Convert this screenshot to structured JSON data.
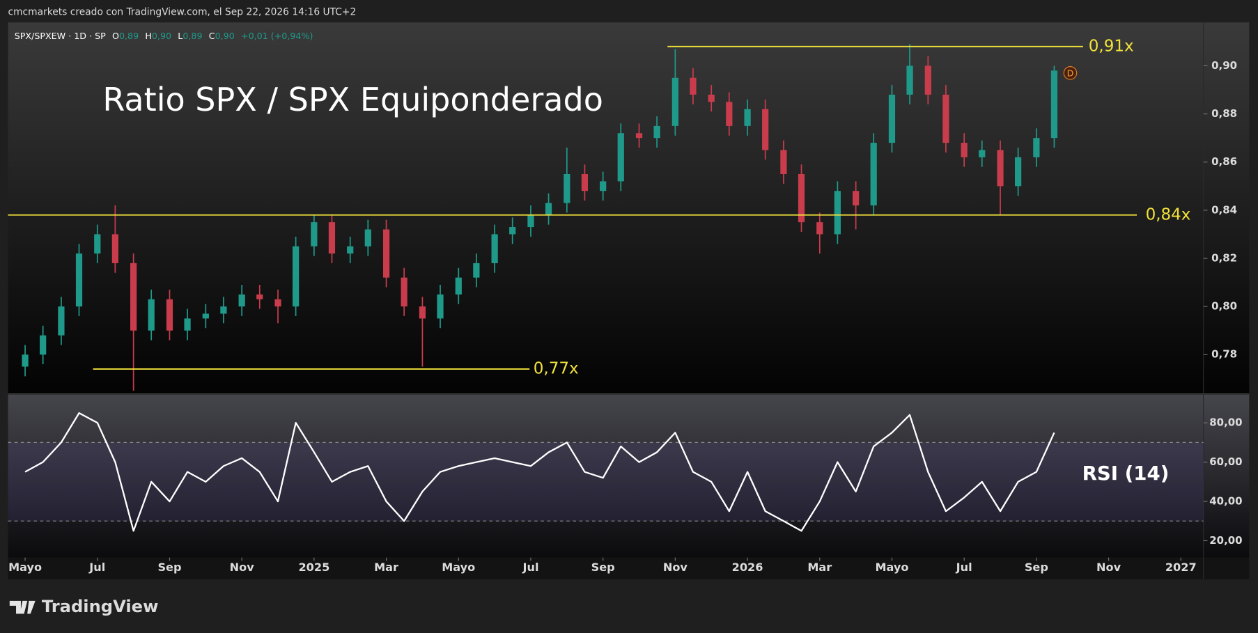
{
  "header": {
    "title": "cmcmarkets creado con TradingView.com, el Sep 22, 2026 14:16 UTC+2"
  },
  "footer": {
    "brand": "TradingView"
  },
  "chart_data": [
    {
      "type": "candlestick",
      "title": "Ratio SPX / SPX Equiponderado",
      "legend": {
        "symbol": "SPX/SPXEW · 1D · SP",
        "open_label": "O",
        "open": "0,89",
        "high_label": "H",
        "high": "0,90",
        "low_label": "L",
        "low": "0,89",
        "close_label": "C",
        "close": "0,90",
        "change": "+0,01 (+0,94%)"
      },
      "event_marker": "D",
      "up_color": "#1f9a8a",
      "down_color": "#c93c4c",
      "level_color": "#f2e23a",
      "xlim": [
        "2024-04-17",
        "2027-01-20"
      ],
      "ylim": [
        0.764,
        0.918
      ],
      "yticks": [
        {
          "value": 0.78,
          "label": "0,78"
        },
        {
          "value": 0.8,
          "label": "0,80"
        },
        {
          "value": 0.82,
          "label": "0,82"
        },
        {
          "value": 0.84,
          "label": "0,84"
        },
        {
          "value": 0.86,
          "label": "0,86"
        },
        {
          "value": 0.88,
          "label": "0,88"
        },
        {
          "value": 0.9,
          "label": "0,90"
        }
      ],
      "levels": [
        {
          "value": 0.908,
          "label": "0,91x"
        },
        {
          "value": 0.838,
          "label": "0,84x"
        },
        {
          "value": 0.774,
          "label": "0,77x"
        }
      ],
      "x": [
        "2024-05-01",
        "2024-05-16",
        "2024-06-01",
        "2024-06-16",
        "2024-07-01",
        "2024-07-16",
        "2024-08-01",
        "2024-08-16",
        "2024-09-01",
        "2024-09-16",
        "2024-10-01",
        "2024-10-16",
        "2024-11-01",
        "2024-11-16",
        "2024-12-01",
        "2024-12-16",
        "2025-01-01",
        "2025-01-16",
        "2025-02-01",
        "2025-02-16",
        "2025-03-01",
        "2025-03-16",
        "2025-04-01",
        "2025-04-16",
        "2025-05-01",
        "2025-05-16",
        "2025-06-01",
        "2025-06-16",
        "2025-07-01",
        "2025-07-16",
        "2025-08-01",
        "2025-08-16",
        "2025-09-01",
        "2025-09-16",
        "2025-10-01",
        "2025-10-16",
        "2025-11-01",
        "2025-11-16",
        "2025-12-01",
        "2025-12-16",
        "2026-01-01",
        "2026-01-16",
        "2026-02-01",
        "2026-02-16",
        "2026-03-01",
        "2026-03-16",
        "2026-04-01",
        "2026-04-16",
        "2026-05-01",
        "2026-05-16",
        "2026-06-01",
        "2026-06-16",
        "2026-07-01",
        "2026-07-16",
        "2026-08-01",
        "2026-08-16",
        "2026-09-01",
        "2026-09-16"
      ],
      "open": [
        0.775,
        0.78,
        0.788,
        0.8,
        0.822,
        0.83,
        0.818,
        0.79,
        0.803,
        0.79,
        0.795,
        0.797,
        0.8,
        0.805,
        0.803,
        0.8,
        0.825,
        0.835,
        0.822,
        0.825,
        0.832,
        0.812,
        0.8,
        0.795,
        0.805,
        0.812,
        0.818,
        0.83,
        0.833,
        0.838,
        0.843,
        0.855,
        0.848,
        0.852,
        0.872,
        0.87,
        0.875,
        0.895,
        0.888,
        0.885,
        0.875,
        0.882,
        0.865,
        0.855,
        0.835,
        0.83,
        0.848,
        0.842,
        0.868,
        0.888,
        0.9,
        0.888,
        0.868,
        0.862,
        0.865,
        0.85,
        0.862,
        0.87
      ],
      "high": [
        0.784,
        0.792,
        0.804,
        0.826,
        0.834,
        0.842,
        0.822,
        0.807,
        0.807,
        0.799,
        0.801,
        0.804,
        0.809,
        0.809,
        0.807,
        0.829,
        0.838,
        0.838,
        0.829,
        0.836,
        0.836,
        0.816,
        0.804,
        0.809,
        0.816,
        0.822,
        0.834,
        0.837,
        0.842,
        0.847,
        0.866,
        0.859,
        0.856,
        0.876,
        0.876,
        0.879,
        0.907,
        0.899,
        0.892,
        0.889,
        0.886,
        0.886,
        0.869,
        0.859,
        0.839,
        0.852,
        0.852,
        0.872,
        0.892,
        0.909,
        0.904,
        0.892,
        0.872,
        0.869,
        0.869,
        0.866,
        0.874,
        0.9
      ],
      "low": [
        0.771,
        0.776,
        0.784,
        0.796,
        0.818,
        0.814,
        0.765,
        0.786,
        0.786,
        0.786,
        0.791,
        0.793,
        0.796,
        0.799,
        0.793,
        0.796,
        0.821,
        0.818,
        0.818,
        0.821,
        0.808,
        0.796,
        0.775,
        0.791,
        0.801,
        0.808,
        0.814,
        0.826,
        0.829,
        0.834,
        0.839,
        0.844,
        0.844,
        0.848,
        0.866,
        0.866,
        0.871,
        0.884,
        0.881,
        0.871,
        0.871,
        0.861,
        0.851,
        0.831,
        0.822,
        0.826,
        0.832,
        0.838,
        0.864,
        0.884,
        0.884,
        0.864,
        0.858,
        0.858,
        0.838,
        0.846,
        0.858,
        0.866
      ],
      "close": [
        0.78,
        0.788,
        0.8,
        0.822,
        0.83,
        0.818,
        0.79,
        0.803,
        0.79,
        0.795,
        0.797,
        0.8,
        0.805,
        0.803,
        0.8,
        0.825,
        0.835,
        0.822,
        0.825,
        0.832,
        0.812,
        0.8,
        0.795,
        0.805,
        0.812,
        0.818,
        0.83,
        0.833,
        0.838,
        0.843,
        0.855,
        0.848,
        0.852,
        0.872,
        0.87,
        0.875,
        0.895,
        0.888,
        0.885,
        0.875,
        0.882,
        0.865,
        0.855,
        0.835,
        0.83,
        0.848,
        0.842,
        0.868,
        0.888,
        0.9,
        0.888,
        0.868,
        0.862,
        0.865,
        0.85,
        0.862,
        0.87,
        0.898
      ]
    },
    {
      "type": "line",
      "title": "RSI (14)",
      "xlim": [
        "2024-04-17",
        "2027-01-20"
      ],
      "xticks": [
        {
          "value": "2024-05-01",
          "label": "Mayo"
        },
        {
          "value": "2024-07-01",
          "label": "Jul"
        },
        {
          "value": "2024-09-01",
          "label": "Sep"
        },
        {
          "value": "2024-11-01",
          "label": "Nov"
        },
        {
          "value": "2025-01-01",
          "label": "2025"
        },
        {
          "value": "2025-03-01",
          "label": "Mar"
        },
        {
          "value": "2025-05-01",
          "label": "Mayo"
        },
        {
          "value": "2025-07-01",
          "label": "Jul"
        },
        {
          "value": "2025-09-01",
          "label": "Sep"
        },
        {
          "value": "2025-11-01",
          "label": "Nov"
        },
        {
          "value": "2026-01-01",
          "label": "2026"
        },
        {
          "value": "2026-03-01",
          "label": "Mar"
        },
        {
          "value": "2026-05-01",
          "label": "Mayo"
        },
        {
          "value": "2026-07-01",
          "label": "Jul"
        },
        {
          "value": "2026-09-01",
          "label": "Sep"
        },
        {
          "value": "2026-11-01",
          "label": "Nov"
        },
        {
          "value": "2027-01-01",
          "label": "2027"
        }
      ],
      "ylim": [
        11.4,
        94.3
      ],
      "yticks": [
        {
          "value": 20,
          "label": "20,00"
        },
        {
          "value": 40,
          "label": "40,00"
        },
        {
          "value": 60,
          "label": "60,00"
        },
        {
          "value": 80,
          "label": "80,00"
        }
      ],
      "bands": [
        30,
        70
      ],
      "x": [
        "2024-05-01",
        "2024-05-16",
        "2024-06-01",
        "2024-06-16",
        "2024-07-01",
        "2024-07-16",
        "2024-08-01",
        "2024-08-16",
        "2024-09-01",
        "2024-09-16",
        "2024-10-01",
        "2024-10-16",
        "2024-11-01",
        "2024-11-16",
        "2024-12-01",
        "2024-12-16",
        "2025-01-01",
        "2025-01-16",
        "2025-02-01",
        "2025-02-16",
        "2025-03-01",
        "2025-03-16",
        "2025-04-01",
        "2025-04-16",
        "2025-05-01",
        "2025-05-16",
        "2025-06-01",
        "2025-06-16",
        "2025-07-01",
        "2025-07-16",
        "2025-08-01",
        "2025-08-16",
        "2025-09-01",
        "2025-09-16",
        "2025-10-01",
        "2025-10-16",
        "2025-11-01",
        "2025-11-16",
        "2025-12-01",
        "2025-12-16",
        "2026-01-01",
        "2026-01-16",
        "2026-02-01",
        "2026-02-16",
        "2026-03-01",
        "2026-03-16",
        "2026-04-01",
        "2026-04-16",
        "2026-05-01",
        "2026-05-16",
        "2026-06-01",
        "2026-06-16",
        "2026-07-01",
        "2026-07-16",
        "2026-08-01",
        "2026-08-16",
        "2026-09-01",
        "2026-09-16"
      ],
      "series": [
        {
          "color": "#ffffff",
          "values": [
            55,
            60,
            70,
            85,
            80,
            60,
            25,
            50,
            40,
            55,
            50,
            58,
            62,
            55,
            40,
            80,
            65,
            50,
            55,
            58,
            40,
            30,
            45,
            55,
            58,
            60,
            62,
            60,
            58,
            65,
            70,
            55,
            52,
            68,
            60,
            65,
            75,
            55,
            50,
            35,
            55,
            35,
            30,
            25,
            40,
            60,
            45,
            68,
            75,
            84,
            55,
            35,
            42,
            50,
            35,
            50,
            55,
            75
          ]
        }
      ]
    }
  ]
}
